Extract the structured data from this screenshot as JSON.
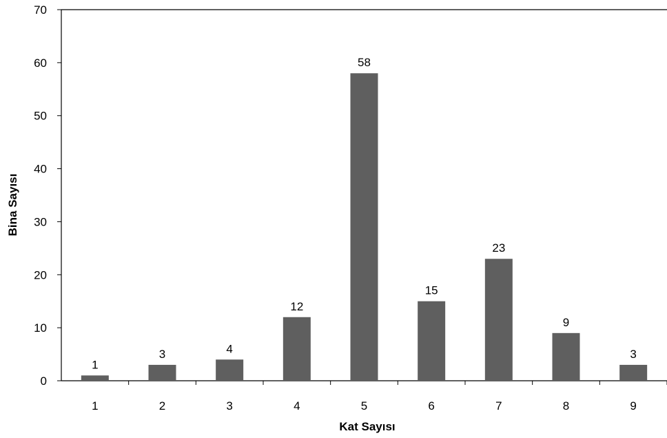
{
  "chart_data": {
    "type": "bar",
    "categories": [
      "1",
      "2",
      "3",
      "4",
      "5",
      "6",
      "7",
      "8",
      "9"
    ],
    "values": [
      1,
      3,
      4,
      12,
      58,
      15,
      23,
      9,
      3
    ],
    "xlabel": "Kat Sayısı",
    "ylabel": "Bina Sayısı",
    "ylim": [
      0,
      70
    ],
    "yticks": [
      0,
      10,
      20,
      30,
      40,
      50,
      60,
      70
    ],
    "grid": false,
    "bar_color": "#5f5f5f",
    "data_labels": true
  }
}
